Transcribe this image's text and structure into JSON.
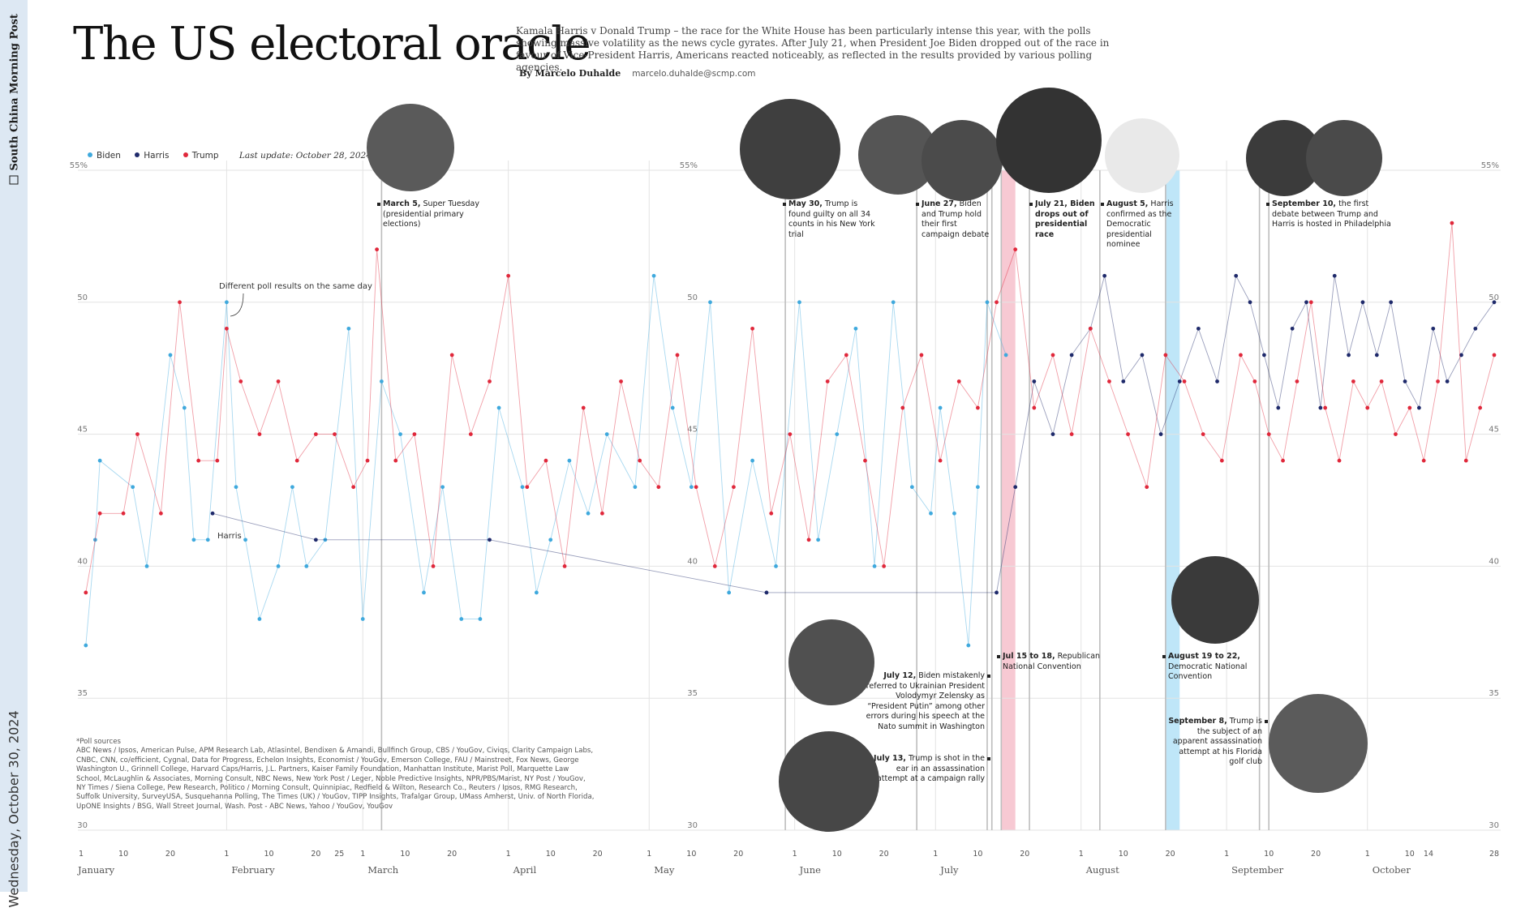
{
  "brand": "South China Morning Post",
  "pubdate": "Wednesday, October 30, 2024",
  "title": "The US electoral oracle",
  "intro": "Kamala Harris v Donald Trump – the race for the White House has been particularly intense this year, with the polls showing massive volatility as the news cycle gyrates. After July 21, when President Joe Biden dropped out of the race in favour of Vice-President Harris, Americans reacted noticeably, as reflected in the results provided by various polling agencies.",
  "byline": {
    "author": "By Marcelo Duhalde",
    "email": "marcelo.duhalde@scmp.com"
  },
  "legend": {
    "items": [
      {
        "label": "Biden",
        "color": "#3fa9dd"
      },
      {
        "label": "Harris",
        "color": "#1f2a6b"
      },
      {
        "label": "Trump",
        "color": "#e0283b"
      }
    ],
    "update": "Last update: October 28, 2024"
  },
  "sources": "*Poll sources\nABC News / Ipsos, American Pulse, APM Research Lab, Atlasintel, Bendixen & Amandi, Bullfinch Group, CBS / YouGov, Civiqs, Clarity Campaign Labs, CNBC, CNN, co/efficient, Cygnal, Data for Progress, Echelon Insights, Economist / YouGov, Emerson College, FAU / Mainstreet, Fox News, George Washington U., Grinnell College, Harvard Caps/Harris, J.L. Partners, Kaiser Family Foundation, Manhattan Institute, Marist Poll, Marquette Law School, McLaughlin & Associates, Morning Consult, NBC News, New York Post / Leger, Noble Predictive Insights, NPR/PBS/Marist, NY Post / YouGov, NY Times / Siena College, Pew Research, Politico / Morning Consult, Quinnipiac, Redfield & Wilton, Research Co., Reuters / Ipsos, RMG Research, Suffolk University, SurveyUSA, Susquehanna Polling, The Times (UK) / YouGov, TIPP Insights, Trafalgar Group, UMass Amherst, Univ. of North Florida, UpONE Insights / BSG, Wall Street Journal, Wash. Post - ABC News, Yahoo / YouGov, YouGov",
  "colors": {
    "biden": "#3fa9dd",
    "harris": "#1f2a6b",
    "trump": "#e0283b",
    "rnc": "#f7c9d3",
    "dnc": "#bfe6f8"
  },
  "chart_data": {
    "type": "scatter",
    "title": "The US electoral oracle",
    "x_label": "",
    "y_label": "",
    "xlim": [
      "2024-01-01",
      "2024-10-28"
    ],
    "ylim": [
      30,
      55
    ],
    "yticks": [
      30,
      35,
      40,
      45,
      50,
      55
    ],
    "ytick_labels": [
      "30",
      "35",
      "40",
      "45",
      "50",
      "55%"
    ],
    "month_labels": [
      "January",
      "February",
      "March",
      "April",
      "May",
      "June",
      "July",
      "August",
      "September",
      "October"
    ],
    "day_ticks": [
      "01-01",
      "01-10",
      "01-20",
      "02-01",
      "02-10",
      "02-20",
      "02-25",
      "03-01",
      "03-10",
      "03-20",
      "04-01",
      "04-10",
      "04-20",
      "05-01",
      "05-10",
      "05-20",
      "06-01",
      "06-10",
      "06-20",
      "07-01",
      "07-10",
      "07-20",
      "08-01",
      "08-10",
      "08-20",
      "09-01",
      "09-10",
      "09-20",
      "10-01",
      "10-10",
      "10-14",
      "10-28"
    ],
    "series": [
      {
        "name": "Biden",
        "color": "#3fa9dd",
        "points": [
          [
            "01-02",
            37
          ],
          [
            "01-04",
            41
          ],
          [
            "01-05",
            44
          ],
          [
            "01-12",
            43
          ],
          [
            "01-15",
            40
          ],
          [
            "01-20",
            48
          ],
          [
            "01-23",
            46
          ],
          [
            "01-25",
            41
          ],
          [
            "01-28",
            41
          ],
          [
            "02-01",
            50
          ],
          [
            "02-03",
            43
          ],
          [
            "02-05",
            41
          ],
          [
            "02-08",
            38
          ],
          [
            "02-12",
            40
          ],
          [
            "02-15",
            43
          ],
          [
            "02-18",
            40
          ],
          [
            "02-22",
            41
          ],
          [
            "02-27",
            49
          ],
          [
            "03-01",
            38
          ],
          [
            "03-05",
            47
          ],
          [
            "03-09",
            45
          ],
          [
            "03-14",
            39
          ],
          [
            "03-18",
            43
          ],
          [
            "03-22",
            38
          ],
          [
            "03-26",
            38
          ],
          [
            "03-30",
            46
          ],
          [
            "04-04",
            43
          ],
          [
            "04-07",
            39
          ],
          [
            "04-10",
            41
          ],
          [
            "04-14",
            44
          ],
          [
            "04-18",
            42
          ],
          [
            "04-22",
            45
          ],
          [
            "04-28",
            43
          ],
          [
            "05-02",
            51
          ],
          [
            "05-06",
            46
          ],
          [
            "05-10",
            43
          ],
          [
            "05-14",
            50
          ],
          [
            "05-18",
            39
          ],
          [
            "05-23",
            44
          ],
          [
            "05-28",
            40
          ],
          [
            "06-02",
            50
          ],
          [
            "06-06",
            41
          ],
          [
            "06-10",
            45
          ],
          [
            "06-14",
            49
          ],
          [
            "06-18",
            40
          ],
          [
            "06-22",
            50
          ],
          [
            "06-26",
            43
          ],
          [
            "06-30",
            42
          ],
          [
            "07-02",
            46
          ],
          [
            "07-05",
            42
          ],
          [
            "07-08",
            37
          ],
          [
            "07-10",
            43
          ],
          [
            "07-12",
            50
          ],
          [
            "07-16",
            48
          ]
        ]
      },
      {
        "name": "Harris",
        "color": "#1f2a6b",
        "points": [
          [
            "01-29",
            42
          ],
          [
            "02-20",
            41
          ],
          [
            "03-28",
            41
          ],
          [
            "05-26",
            39
          ],
          [
            "07-14",
            39
          ],
          [
            "07-18",
            43
          ],
          [
            "07-22",
            47
          ],
          [
            "07-26",
            45
          ],
          [
            "07-30",
            48
          ],
          [
            "08-03",
            49
          ],
          [
            "08-06",
            51
          ],
          [
            "08-10",
            47
          ],
          [
            "08-14",
            48
          ],
          [
            "08-18",
            45
          ],
          [
            "08-22",
            47
          ],
          [
            "08-26",
            49
          ],
          [
            "08-30",
            47
          ],
          [
            "09-03",
            51
          ],
          [
            "09-06",
            50
          ],
          [
            "09-09",
            48
          ],
          [
            "09-12",
            46
          ],
          [
            "09-15",
            49
          ],
          [
            "09-18",
            50
          ],
          [
            "09-21",
            46
          ],
          [
            "09-24",
            51
          ],
          [
            "09-27",
            48
          ],
          [
            "09-30",
            50
          ],
          [
            "10-03",
            48
          ],
          [
            "10-06",
            50
          ],
          [
            "10-09",
            47
          ],
          [
            "10-12",
            46
          ],
          [
            "10-15",
            49
          ],
          [
            "10-18",
            47
          ],
          [
            "10-21",
            48
          ],
          [
            "10-24",
            49
          ],
          [
            "10-28",
            50
          ]
        ]
      },
      {
        "name": "Trump",
        "color": "#e0283b",
        "points": [
          [
            "01-02",
            39
          ],
          [
            "01-05",
            42
          ],
          [
            "01-10",
            42
          ],
          [
            "01-13",
            45
          ],
          [
            "01-18",
            42
          ],
          [
            "01-22",
            50
          ],
          [
            "01-26",
            44
          ],
          [
            "01-30",
            44
          ],
          [
            "02-01",
            49
          ],
          [
            "02-04",
            47
          ],
          [
            "02-08",
            45
          ],
          [
            "02-12",
            47
          ],
          [
            "02-16",
            44
          ],
          [
            "02-20",
            45
          ],
          [
            "02-24",
            45
          ],
          [
            "02-28",
            43
          ],
          [
            "03-02",
            44
          ],
          [
            "03-04",
            52
          ],
          [
            "03-08",
            44
          ],
          [
            "03-12",
            45
          ],
          [
            "03-16",
            40
          ],
          [
            "03-20",
            48
          ],
          [
            "03-24",
            45
          ],
          [
            "03-28",
            47
          ],
          [
            "04-01",
            51
          ],
          [
            "04-05",
            43
          ],
          [
            "04-09",
            44
          ],
          [
            "04-13",
            40
          ],
          [
            "04-17",
            46
          ],
          [
            "04-21",
            42
          ],
          [
            "04-25",
            47
          ],
          [
            "04-29",
            44
          ],
          [
            "05-03",
            43
          ],
          [
            "05-07",
            48
          ],
          [
            "05-11",
            43
          ],
          [
            "05-15",
            40
          ],
          [
            "05-19",
            43
          ],
          [
            "05-23",
            49
          ],
          [
            "05-27",
            42
          ],
          [
            "05-31",
            45
          ],
          [
            "06-04",
            41
          ],
          [
            "06-08",
            47
          ],
          [
            "06-12",
            48
          ],
          [
            "06-16",
            44
          ],
          [
            "06-20",
            40
          ],
          [
            "06-24",
            46
          ],
          [
            "06-28",
            48
          ],
          [
            "07-02",
            44
          ],
          [
            "07-06",
            47
          ],
          [
            "07-10",
            46
          ],
          [
            "07-14",
            50
          ],
          [
            "07-18",
            52
          ],
          [
            "07-22",
            46
          ],
          [
            "07-26",
            48
          ],
          [
            "07-30",
            45
          ],
          [
            "08-03",
            49
          ],
          [
            "08-07",
            47
          ],
          [
            "08-11",
            45
          ],
          [
            "08-15",
            43
          ],
          [
            "08-19",
            48
          ],
          [
            "08-23",
            47
          ],
          [
            "08-27",
            45
          ],
          [
            "08-31",
            44
          ],
          [
            "09-04",
            48
          ],
          [
            "09-07",
            47
          ],
          [
            "09-10",
            45
          ],
          [
            "09-13",
            44
          ],
          [
            "09-16",
            47
          ],
          [
            "09-19",
            50
          ],
          [
            "09-22",
            46
          ],
          [
            "09-25",
            44
          ],
          [
            "09-28",
            47
          ],
          [
            "10-01",
            46
          ],
          [
            "10-04",
            47
          ],
          [
            "10-07",
            45
          ],
          [
            "10-10",
            46
          ],
          [
            "10-13",
            44
          ],
          [
            "10-16",
            47
          ],
          [
            "10-19",
            53
          ],
          [
            "10-22",
            44
          ],
          [
            "10-25",
            46
          ],
          [
            "10-28",
            48
          ]
        ]
      }
    ],
    "callouts": [
      {
        "text": "Different poll results on the same day"
      },
      {
        "text": "Harris"
      }
    ],
    "events": [
      {
        "date": "03-05",
        "bold": "March 5,",
        "text": " Super Tuesday (presidential primary elections)"
      },
      {
        "date": "05-30",
        "bold": "May 30,",
        "text": " Trump is found guilty on all 34 counts in his New York trial"
      },
      {
        "date": "06-27",
        "bold": "June 27,",
        "text": " Biden and Trump hold their first campaign debate"
      },
      {
        "date": "07-21",
        "bold": "July 21, Biden drops out of presidential race",
        "text": ""
      },
      {
        "date": "08-05",
        "bold": "August 5,",
        "text": " Harris confirmed as the Democratic presidential nominee"
      },
      {
        "date": "09-10",
        "bold": "September 10,",
        "text": " the first debate between Trump and Harris is hosted in Philadelphia"
      },
      {
        "date": "07-12",
        "bold": "July 12,",
        "text": " Biden mistakenly referred to Ukrainian President Volodymyr Zelensky as “President Putin” among other errors during his speech at the Nato summit in Washington"
      },
      {
        "date": "07-13",
        "bold": "July 13,",
        "text": " Trump is shot in the ear in an assassination attempt at a campaign rally"
      },
      {
        "date": "07-15",
        "bold": "Jul 15 to 18,",
        "text": " Republican National Convention"
      },
      {
        "date": "08-19",
        "bold": "August 19 to 22,",
        "text": " Democratic National Convention"
      },
      {
        "date": "09-08",
        "bold": "September 8,",
        "text": " Trump is the subject of an apparent assassination attempt at his Florida golf club"
      }
    ]
  }
}
